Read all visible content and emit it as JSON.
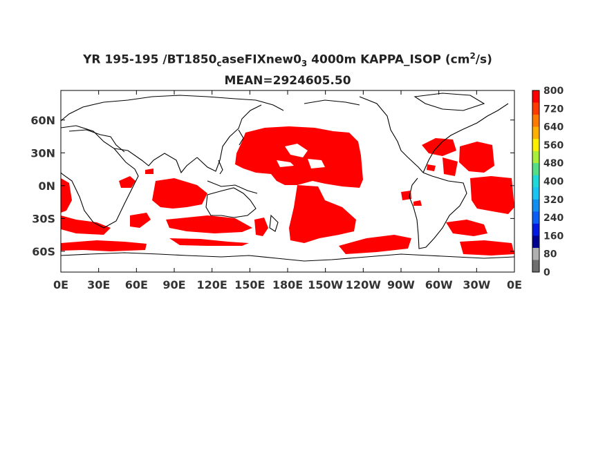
{
  "title": {
    "prefix": "YR 195-195 /BT1850",
    "sub1": "c",
    "mid": "aseFIXnew0",
    "sub2": "3",
    "suffix": " 4000m KAPPA_ISOP (cm",
    "sup": "2",
    "end": "/s)",
    "mean": "MEAN=2924605.50"
  },
  "axes": {
    "x_ticks": [
      "0E",
      "30E",
      "60E",
      "90E",
      "120E",
      "150E",
      "180E",
      "150W",
      "120W",
      "90W",
      "60W",
      "30W",
      "0E"
    ],
    "x_values": [
      0,
      30,
      60,
      90,
      120,
      150,
      180,
      210,
      240,
      270,
      300,
      330,
      360
    ],
    "y_ticks": [
      "60N",
      "30N",
      "0N",
      "30S",
      "60S"
    ],
    "y_values": [
      60,
      30,
      0,
      -30,
      -60
    ],
    "lon_range": [
      0,
      360
    ],
    "lat_range": [
      -79,
      87
    ]
  },
  "colorbar": {
    "labels": [
      "800",
      "720",
      "640",
      "560",
      "480",
      "400",
      "320",
      "240",
      "160",
      "80",
      "0"
    ],
    "colors": [
      "#ff0000",
      "#ff3c00",
      "#ff7a00",
      "#ffb000",
      "#fff000",
      "#a8ee3a",
      "#55dd88",
      "#20d8d8",
      "#19c4f2",
      "#108ff0",
      "#0a5ef5",
      "#0018e0",
      "#000090",
      "#b0b0b0",
      "#6e6e6e"
    ]
  },
  "colors": {
    "field_high": "#ff0000",
    "coast": "#000000"
  }
}
